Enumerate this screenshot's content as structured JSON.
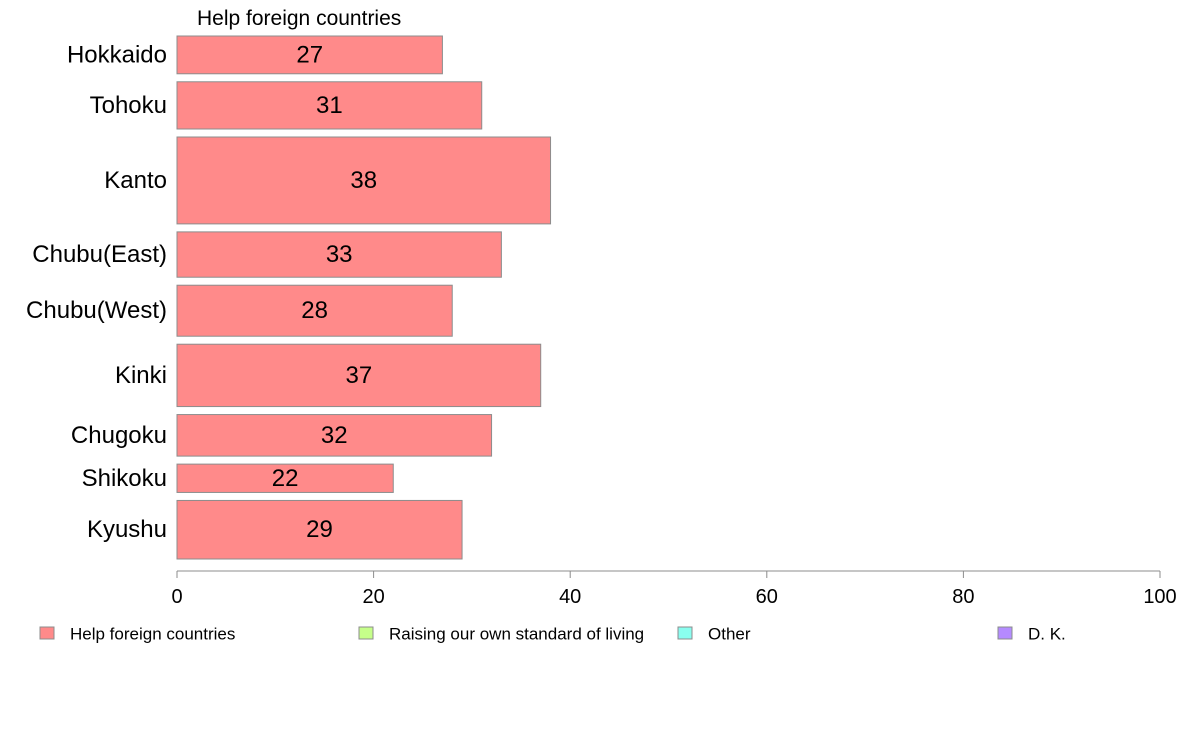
{
  "chart_data": {
    "type": "bar",
    "orientation": "horizontal",
    "title": "Help foreign countries",
    "categories": [
      "Hokkaido",
      "Tohoku",
      "Kanto",
      "Chubu(East)",
      "Chubu(West)",
      "Kinki",
      "Chugoku",
      "Shikoku",
      "Kyushu"
    ],
    "series": [
      {
        "name": "Help foreign countries",
        "values": [
          27,
          31,
          38,
          33,
          28,
          37,
          32,
          22,
          29
        ]
      }
    ],
    "category_weights": [
      1.0,
      1.25,
      2.3,
      1.2,
      1.35,
      1.65,
      1.1,
      0.75,
      1.55
    ],
    "xlim": [
      0,
      100
    ],
    "xticks": [
      0,
      20,
      40,
      60,
      80,
      100
    ],
    "xlabel": "",
    "ylabel": "",
    "grid": false,
    "legend": {
      "position": "bottom",
      "entries": [
        {
          "name": "Help foreign countries",
          "color": "#ff8a8a"
        },
        {
          "name": "Raising our own standard of living",
          "color": "#c6ff8a"
        },
        {
          "name": "Other",
          "color": "#8affef"
        },
        {
          "name": "D. K.",
          "color": "#b58aff"
        }
      ]
    },
    "bar_color": "#ff8a8a",
    "bar_stroke": "#8c8c8c",
    "axis_color": "#8c8c8c"
  }
}
